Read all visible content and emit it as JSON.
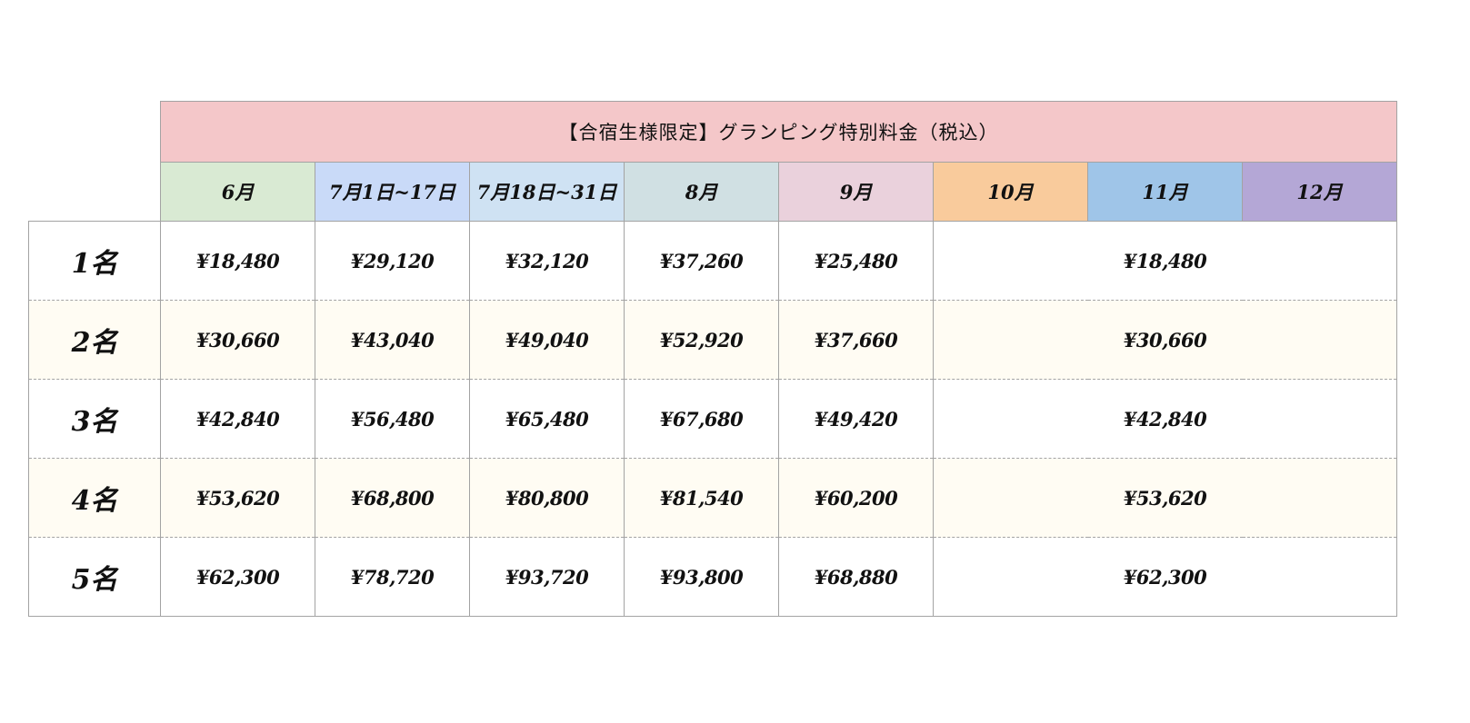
{
  "table": {
    "title": "【合宿生様限定】グランピング特別料金（税込）",
    "columns": [
      {
        "label": "6月",
        "color": "#d9ead3"
      },
      {
        "label": "7月1日~17日",
        "color": "#c9daf8"
      },
      {
        "label": "7月18日~31日",
        "color": "#cfe2f3"
      },
      {
        "label": "8月",
        "color": "#d0e0e3"
      },
      {
        "label": "9月",
        "color": "#ead1dc"
      },
      {
        "label": "10月",
        "color": "#f9cb9c"
      },
      {
        "label": "11月",
        "color": "#9fc5e8"
      },
      {
        "label": "12月",
        "color": "#b4a7d6"
      }
    ],
    "rows": [
      {
        "label": "1名",
        "prices": [
          "¥18,480",
          "¥29,120",
          "¥32,120",
          "¥37,260",
          "¥25,480"
        ],
        "oct_dec": "¥18,480"
      },
      {
        "label": "2名",
        "prices": [
          "¥30,660",
          "¥43,040",
          "¥49,040",
          "¥52,920",
          "¥37,660"
        ],
        "oct_dec": "¥30,660"
      },
      {
        "label": "3名",
        "prices": [
          "¥42,840",
          "¥56,480",
          "¥65,480",
          "¥67,680",
          "¥49,420"
        ],
        "oct_dec": "¥42,840"
      },
      {
        "label": "4名",
        "prices": [
          "¥53,620",
          "¥68,800",
          "¥80,800",
          "¥81,540",
          "¥60,200"
        ],
        "oct_dec": "¥53,620"
      },
      {
        "label": "5名",
        "prices": [
          "¥62,300",
          "¥78,720",
          "¥93,720",
          "¥93,800",
          "¥68,880"
        ],
        "oct_dec": "¥62,300"
      }
    ]
  }
}
